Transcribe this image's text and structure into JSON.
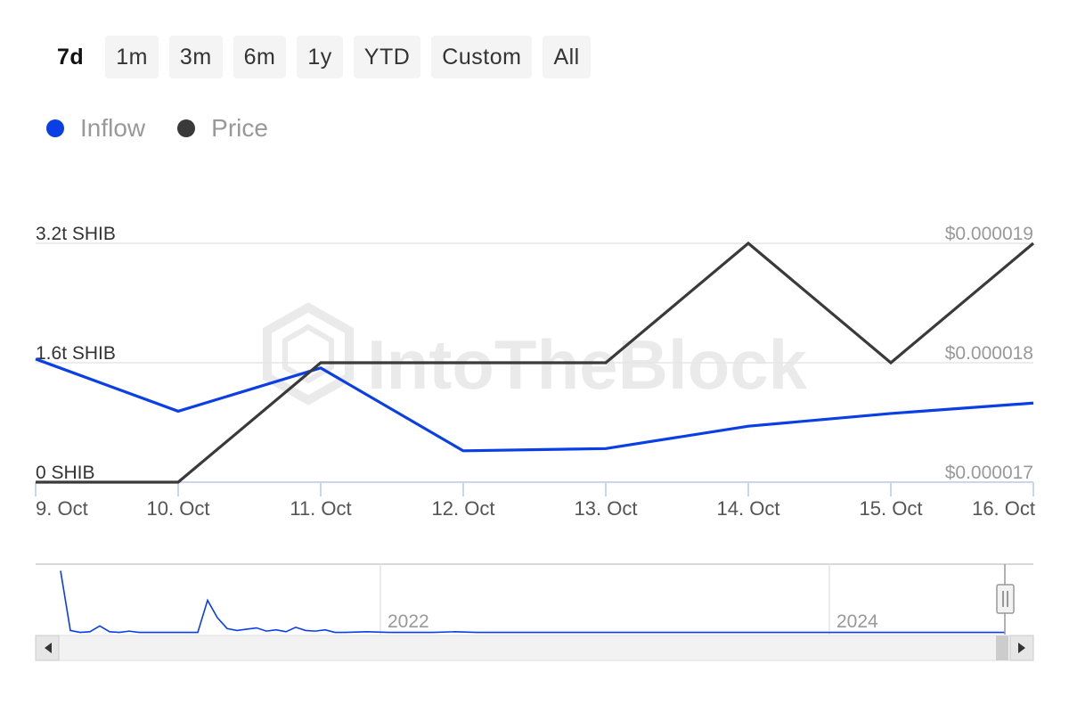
{
  "range_buttons": [
    {
      "label": "7d",
      "active": true
    },
    {
      "label": "1m",
      "active": false
    },
    {
      "label": "3m",
      "active": false
    },
    {
      "label": "6m",
      "active": false
    },
    {
      "label": "1y",
      "active": false
    },
    {
      "label": "YTD",
      "active": false
    },
    {
      "label": "Custom",
      "active": false
    },
    {
      "label": "All",
      "active": false
    }
  ],
  "legend": [
    {
      "label": "Inflow",
      "color": "#0a3fe6"
    },
    {
      "label": "Price",
      "color": "#3a3a3a"
    }
  ],
  "watermark": "IntoTheBlock",
  "chart_data": {
    "type": "line",
    "x": [
      "9. Oct",
      "10. Oct",
      "11. Oct",
      "12. Oct",
      "13. Oct",
      "14. Oct",
      "15. Oct",
      "16. Oct"
    ],
    "left_axis": {
      "ticks": [
        {
          "value": 0,
          "label": "0 SHIB"
        },
        {
          "value": 1.6,
          "label": "1.6t SHIB"
        },
        {
          "value": 3.2,
          "label": "3.2t SHIB"
        }
      ],
      "range": [
        0,
        3.2
      ]
    },
    "right_axis": {
      "ticks": [
        {
          "value": 1.7e-05,
          "label": "$0.000017"
        },
        {
          "value": 1.8e-05,
          "label": "$0.000018"
        },
        {
          "value": 1.9e-05,
          "label": "$0.000019"
        }
      ],
      "range": [
        1.7e-05,
        1.9e-05
      ]
    },
    "grid": true,
    "legend_position": "top-left",
    "series": [
      {
        "name": "Inflow",
        "axis": "left",
        "color": "#0a3fe6",
        "values": [
          1.65,
          0.95,
          1.53,
          0.42,
          0.45,
          0.75,
          0.92,
          1.06
        ]
      },
      {
        "name": "Price",
        "axis": "right",
        "color": "#3a3a3a",
        "values": [
          1.7e-05,
          1.7e-05,
          1.8e-05,
          1.8e-05,
          1.8e-05,
          1.9e-05,
          1.8e-05,
          1.9e-05
        ]
      }
    ]
  },
  "navigator": {
    "year_labels": [
      "2022",
      "2024"
    ],
    "spark_values": [
      0.98,
      0.05,
      0.02,
      0.03,
      0.12,
      0.03,
      0.02,
      0.04,
      0.02,
      0.02,
      0.02,
      0.02,
      0.02,
      0.02,
      0.02,
      0.52,
      0.25,
      0.08,
      0.05,
      0.07,
      0.09,
      0.04,
      0.06,
      0.03,
      0.1,
      0.05,
      0.04,
      0.06,
      0.02,
      0.02,
      0.03,
      0.02,
      0.02,
      0.02,
      0.03,
      0.02,
      0.02,
      0.02,
      0.02,
      0.02,
      0.02,
      0.02,
      0.02,
      0.02,
      0.02,
      0.02,
      0.02,
      0.02,
      0.02,
      0.02,
      0.02,
      0.02,
      0.02,
      0.02,
      0.02,
      0.02,
      0.02,
      0.02,
      0.02,
      0.02
    ]
  }
}
